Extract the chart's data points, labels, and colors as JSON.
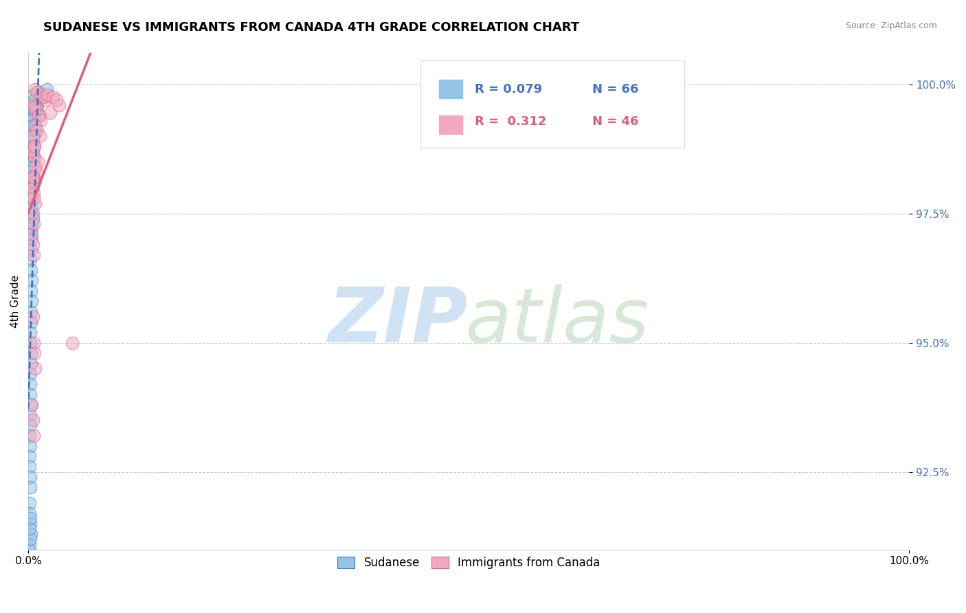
{
  "title": "SUDANESE VS IMMIGRANTS FROM CANADA 4TH GRADE CORRELATION CHART",
  "source": "Source: ZipAtlas.com",
  "ylabel": "4th Grade",
  "xlim": [
    0.0,
    100.0
  ],
  "ylim": [
    91.0,
    100.6
  ],
  "yticks": [
    92.5,
    95.0,
    97.5,
    100.0
  ],
  "ytick_labels": [
    "92.5%",
    "95.0%",
    "97.5%",
    "100.0%"
  ],
  "xticks": [
    0.0,
    100.0
  ],
  "xtick_labels": [
    "0.0%",
    "100.0%"
  ],
  "blue_color": "#92C5E8",
  "pink_color": "#F4A8C0",
  "trend_blue_color": "#4472C4",
  "trend_pink_color": "#E05C7A",
  "sudanese_x": [
    1.2,
    1.5,
    0.6,
    2.1,
    0.8,
    1.0,
    0.5,
    0.9,
    1.3,
    0.7,
    0.4,
    0.6,
    0.5,
    0.8,
    0.7,
    0.5,
    0.6,
    0.4,
    0.5,
    0.6,
    0.3,
    0.4,
    0.5,
    0.6,
    0.4,
    0.3,
    0.4,
    0.3,
    0.5,
    0.4,
    0.3,
    0.3,
    0.4,
    0.3,
    0.2,
    0.3,
    0.4,
    0.3,
    0.4,
    0.3,
    0.3,
    0.2,
    0.2,
    0.3,
    0.3,
    0.2,
    0.2,
    0.2,
    0.3,
    0.2,
    0.2,
    0.15,
    0.2,
    0.15,
    0.15,
    0.2,
    0.2,
    0.15,
    0.15,
    0.2,
    0.3,
    0.15,
    0.15,
    0.2,
    0.15,
    0.2
  ],
  "sudanese_y": [
    99.85,
    99.75,
    99.8,
    99.9,
    99.7,
    99.6,
    99.5,
    99.55,
    99.4,
    99.45,
    99.3,
    99.35,
    99.2,
    99.1,
    99.0,
    98.9,
    98.8,
    98.7,
    98.6,
    98.5,
    98.4,
    98.3,
    98.2,
    98.1,
    98.0,
    97.8,
    97.6,
    97.5,
    97.4,
    97.3,
    97.2,
    97.1,
    97.0,
    96.8,
    96.6,
    96.4,
    96.2,
    96.0,
    95.8,
    95.6,
    95.4,
    95.2,
    95.0,
    94.8,
    94.6,
    94.4,
    94.2,
    94.0,
    93.8,
    93.6,
    93.4,
    93.2,
    93.0,
    92.8,
    92.6,
    92.4,
    92.2,
    91.9,
    91.7,
    91.5,
    91.3,
    91.1,
    91.0,
    91.2,
    91.4,
    91.6
  ],
  "canada_x": [
    0.8,
    1.0,
    1.5,
    2.0,
    1.8,
    0.6,
    0.9,
    0.7,
    2.5,
    1.2,
    1.4,
    0.8,
    1.0,
    1.3,
    0.6,
    0.7,
    0.5,
    1.1,
    0.9,
    0.8,
    0.6,
    0.7,
    0.5,
    0.6,
    0.8,
    0.5,
    0.6,
    0.4,
    0.5,
    0.6,
    2.2,
    2.8,
    3.5,
    3.2,
    0.5,
    0.6,
    0.8,
    0.7,
    0.4,
    0.5,
    5.0,
    0.6,
    0.5,
    0.7,
    0.5,
    0.6
  ],
  "canada_y": [
    99.9,
    99.85,
    99.8,
    99.7,
    99.75,
    99.6,
    99.5,
    99.55,
    99.45,
    99.4,
    99.3,
    99.2,
    99.1,
    99.0,
    98.8,
    98.6,
    98.7,
    98.5,
    98.3,
    98.4,
    98.2,
    98.1,
    98.0,
    97.9,
    97.7,
    97.5,
    97.3,
    97.1,
    96.9,
    96.7,
    99.8,
    99.75,
    99.6,
    99.7,
    95.5,
    95.0,
    94.5,
    94.8,
    93.8,
    93.5,
    95.0,
    93.2,
    99.0,
    98.8,
    98.2,
    97.8
  ]
}
